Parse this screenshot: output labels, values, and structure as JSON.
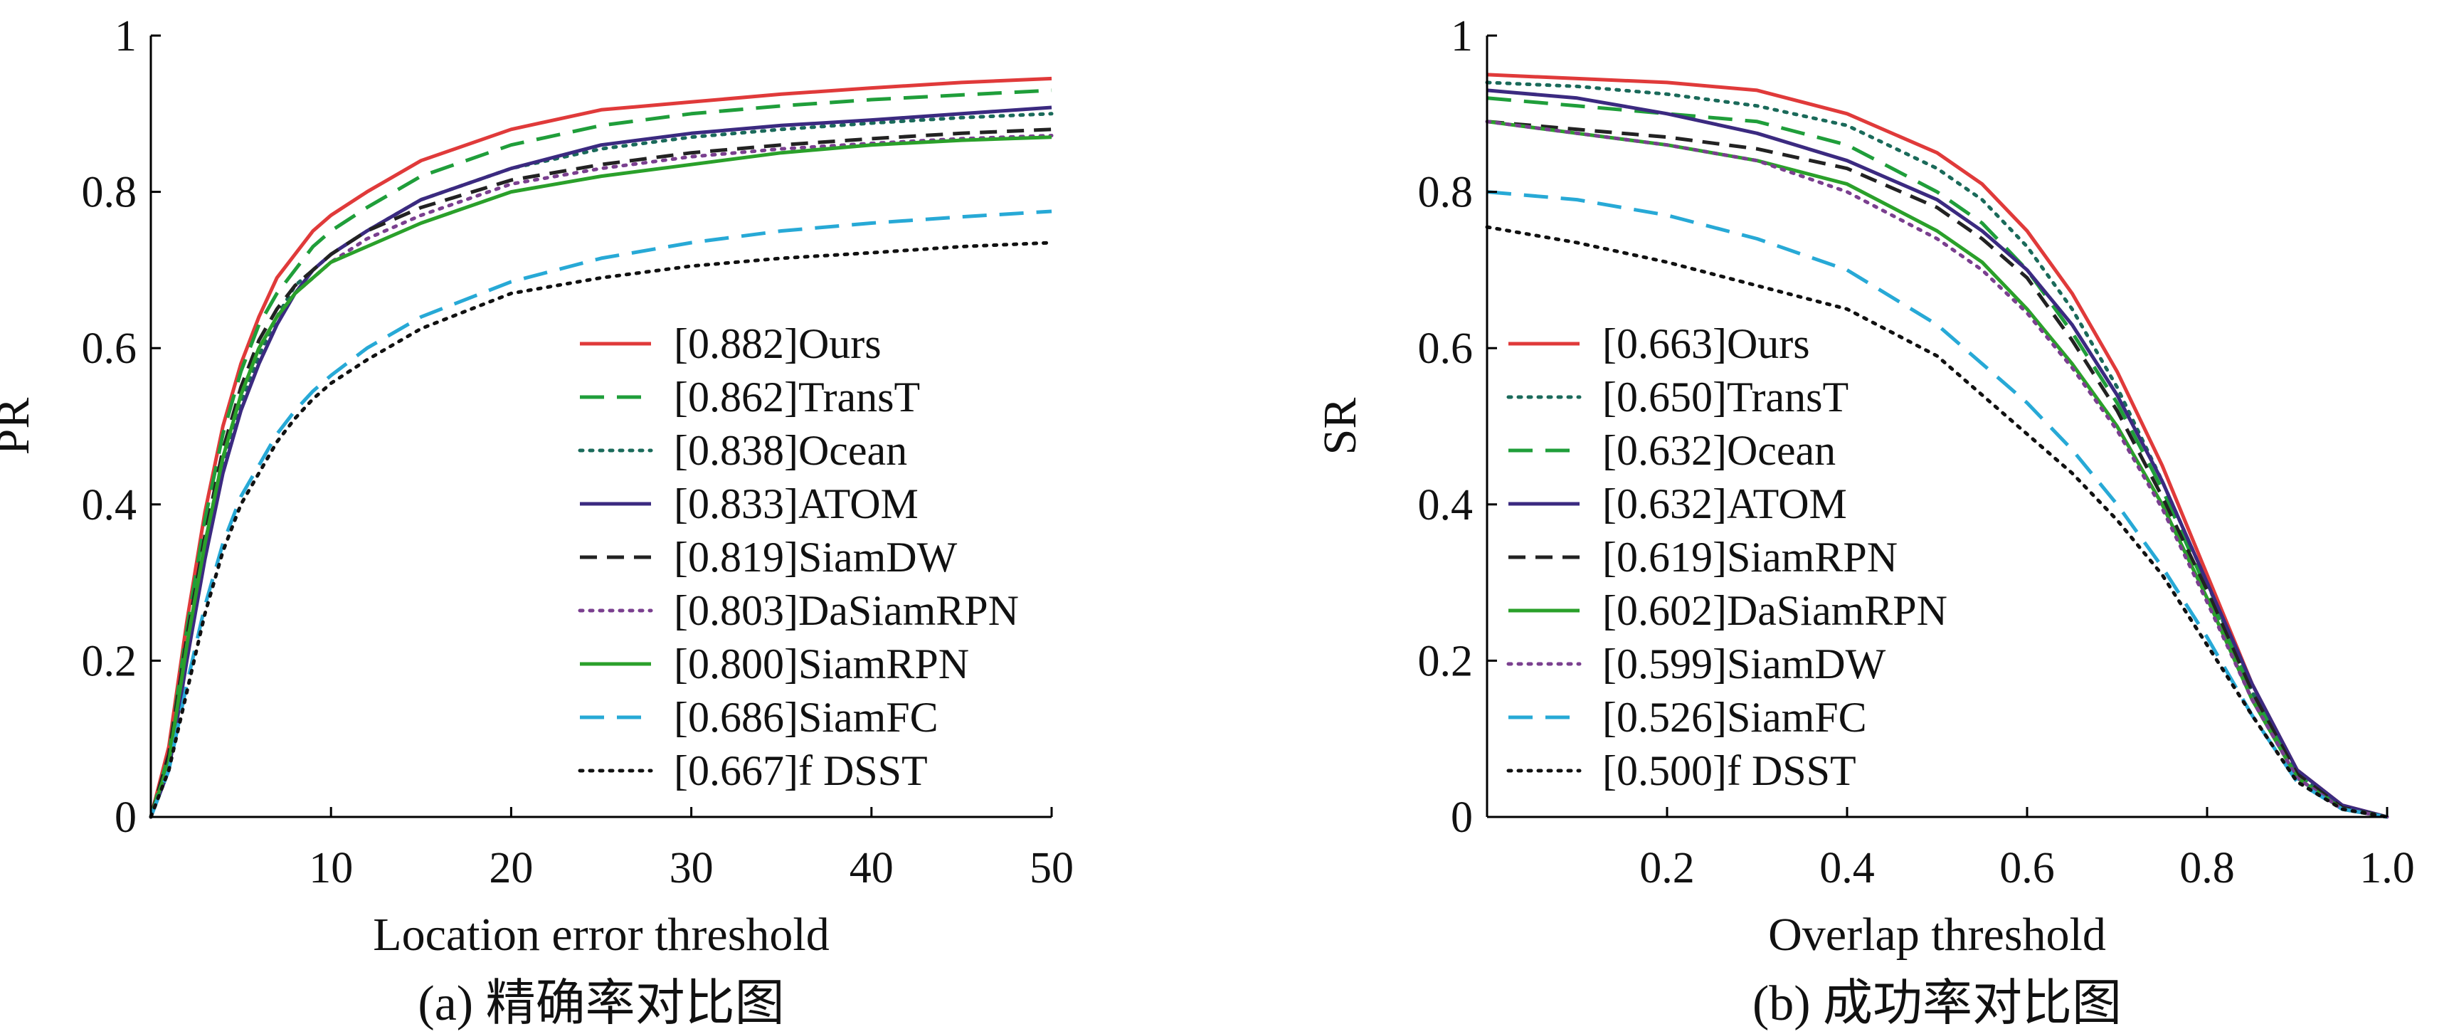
{
  "chart_data": [
    {
      "type": "line",
      "caption": "(a) 精确率对比图",
      "xlabel": "Location error threshold",
      "ylabel": "PR",
      "xlim": [
        0,
        50
      ],
      "ylim": [
        0,
        1
      ],
      "xticks": [
        {
          "v": 10,
          "label": "10"
        },
        {
          "v": 20,
          "label": "20"
        },
        {
          "v": 30,
          "label": "30"
        },
        {
          "v": 40,
          "label": "40"
        },
        {
          "v": 50,
          "label": "50"
        }
      ],
      "yticks": [
        {
          "v": 0,
          "label": "0"
        },
        {
          "v": 0.2,
          "label": "0.2"
        },
        {
          "v": 0.4,
          "label": "0.4"
        },
        {
          "v": 0.6,
          "label": "0.6"
        },
        {
          "v": 0.8,
          "label": "0.8"
        },
        {
          "v": 1,
          "label": "1"
        }
      ],
      "grid": false,
      "legend_position": "bottom-right",
      "x": [
        0,
        1,
        2,
        3,
        4,
        5,
        6,
        7,
        8,
        9,
        10,
        12,
        15,
        20,
        25,
        30,
        35,
        40,
        45,
        50
      ],
      "series": [
        {
          "name": "[0.882]Ours",
          "color": "#e03a3a",
          "dash": "solid",
          "values": [
            0.0,
            0.09,
            0.25,
            0.39,
            0.5,
            0.58,
            0.64,
            0.69,
            0.72,
            0.75,
            0.77,
            0.8,
            0.84,
            0.88,
            0.905,
            0.915,
            0.925,
            0.933,
            0.94,
            0.945
          ]
        },
        {
          "name": "[0.862]TransT",
          "color": "#1f9e3a",
          "dash": "long",
          "values": [
            0.0,
            0.08,
            0.24,
            0.38,
            0.49,
            0.57,
            0.63,
            0.67,
            0.7,
            0.73,
            0.75,
            0.78,
            0.82,
            0.86,
            0.885,
            0.9,
            0.91,
            0.918,
            0.924,
            0.93
          ]
        },
        {
          "name": "[0.838]Ocean",
          "color": "#1a6a5a",
          "dash": "dot",
          "values": [
            0.0,
            0.07,
            0.21,
            0.34,
            0.45,
            0.53,
            0.59,
            0.64,
            0.68,
            0.7,
            0.72,
            0.75,
            0.79,
            0.83,
            0.855,
            0.87,
            0.88,
            0.888,
            0.895,
            0.9
          ]
        },
        {
          "name": "[0.833]ATOM",
          "color": "#3b2a80",
          "dash": "solid",
          "values": [
            0.0,
            0.06,
            0.2,
            0.33,
            0.44,
            0.52,
            0.58,
            0.63,
            0.67,
            0.7,
            0.72,
            0.75,
            0.79,
            0.83,
            0.86,
            0.875,
            0.885,
            0.892,
            0.9,
            0.908
          ]
        },
        {
          "name": "[0.819]SiamDW",
          "color": "#222222",
          "dash": "dash",
          "values": [
            0.0,
            0.08,
            0.23,
            0.36,
            0.47,
            0.55,
            0.61,
            0.65,
            0.68,
            0.7,
            0.72,
            0.75,
            0.78,
            0.815,
            0.835,
            0.85,
            0.86,
            0.868,
            0.875,
            0.88
          ]
        },
        {
          "name": "[0.803]DaSiamRPN",
          "color": "#7a3f8f",
          "dash": "dot",
          "values": [
            0.0,
            0.07,
            0.22,
            0.35,
            0.46,
            0.54,
            0.6,
            0.64,
            0.67,
            0.69,
            0.71,
            0.74,
            0.77,
            0.81,
            0.83,
            0.845,
            0.855,
            0.862,
            0.868,
            0.872
          ]
        },
        {
          "name": "[0.800]SiamRPN",
          "color": "#2aa02a",
          "dash": "solid",
          "values": [
            0.0,
            0.07,
            0.22,
            0.35,
            0.46,
            0.54,
            0.6,
            0.64,
            0.67,
            0.69,
            0.71,
            0.73,
            0.76,
            0.8,
            0.82,
            0.835,
            0.85,
            0.86,
            0.866,
            0.87
          ]
        },
        {
          "name": "[0.686]SiamFC",
          "color": "#27a9d6",
          "dash": "long",
          "values": [
            0.0,
            0.06,
            0.17,
            0.27,
            0.35,
            0.41,
            0.45,
            0.49,
            0.52,
            0.545,
            0.565,
            0.6,
            0.64,
            0.685,
            0.715,
            0.735,
            0.75,
            0.76,
            0.768,
            0.775
          ]
        },
        {
          "name": "[0.667]f DSST",
          "color": "#111111",
          "dash": "dot",
          "values": [
            0.0,
            0.06,
            0.16,
            0.26,
            0.34,
            0.4,
            0.44,
            0.48,
            0.51,
            0.535,
            0.555,
            0.585,
            0.625,
            0.67,
            0.69,
            0.705,
            0.715,
            0.722,
            0.73,
            0.735
          ]
        }
      ]
    },
    {
      "type": "line",
      "caption": "(b) 成功率对比图",
      "xlabel": "Overlap threshold",
      "ylabel": "SR",
      "xlim": [
        0,
        1
      ],
      "ylim": [
        0,
        1
      ],
      "xticks": [
        {
          "v": 0.2,
          "label": "0.2"
        },
        {
          "v": 0.4,
          "label": "0.4"
        },
        {
          "v": 0.6,
          "label": "0.6"
        },
        {
          "v": 0.8,
          "label": "0.8"
        },
        {
          "v": 1,
          "label": "1.0"
        }
      ],
      "yticks": [
        {
          "v": 0,
          "label": "0"
        },
        {
          "v": 0.2,
          "label": "0.2"
        },
        {
          "v": 0.4,
          "label": "0.4"
        },
        {
          "v": 0.6,
          "label": "0.6"
        },
        {
          "v": 0.8,
          "label": "0.8"
        },
        {
          "v": 1,
          "label": "1"
        }
      ],
      "grid": false,
      "legend_position": "left-center",
      "x": [
        0,
        0.1,
        0.2,
        0.3,
        0.4,
        0.5,
        0.55,
        0.6,
        0.65,
        0.7,
        0.75,
        0.8,
        0.85,
        0.9,
        0.95,
        1.0
      ],
      "series": [
        {
          "name": "[0.663]Ours",
          "color": "#e03a3a",
          "dash": "solid",
          "values": [
            0.95,
            0.945,
            0.94,
            0.93,
            0.9,
            0.85,
            0.81,
            0.75,
            0.67,
            0.57,
            0.45,
            0.31,
            0.17,
            0.06,
            0.015,
            0.0
          ]
        },
        {
          "name": "[0.650]TransT",
          "color": "#1a6a5a",
          "dash": "dot",
          "values": [
            0.94,
            0.935,
            0.925,
            0.91,
            0.885,
            0.83,
            0.79,
            0.73,
            0.65,
            0.55,
            0.43,
            0.3,
            0.16,
            0.055,
            0.012,
            0.0
          ]
        },
        {
          "name": "[0.632]Ocean",
          "color": "#1f9e3a",
          "dash": "long",
          "values": [
            0.92,
            0.91,
            0.9,
            0.89,
            0.86,
            0.8,
            0.76,
            0.7,
            0.62,
            0.53,
            0.42,
            0.29,
            0.16,
            0.055,
            0.012,
            0.0
          ]
        },
        {
          "name": "[0.632]ATOM",
          "color": "#3b2a80",
          "dash": "solid",
          "values": [
            0.93,
            0.92,
            0.9,
            0.875,
            0.84,
            0.79,
            0.75,
            0.7,
            0.63,
            0.54,
            0.43,
            0.3,
            0.17,
            0.06,
            0.015,
            0.0
          ]
        },
        {
          "name": "[0.619]SiamRPN",
          "color": "#222222",
          "dash": "dash",
          "values": [
            0.89,
            0.88,
            0.87,
            0.855,
            0.83,
            0.78,
            0.74,
            0.69,
            0.61,
            0.52,
            0.41,
            0.29,
            0.16,
            0.055,
            0.012,
            0.0
          ]
        },
        {
          "name": "[0.602]DaSiamRPN",
          "color": "#2aa02a",
          "dash": "solid",
          "values": [
            0.89,
            0.875,
            0.86,
            0.84,
            0.81,
            0.75,
            0.71,
            0.65,
            0.58,
            0.5,
            0.4,
            0.28,
            0.15,
            0.05,
            0.01,
            0.0
          ]
        },
        {
          "name": "[0.599]SiamDW",
          "color": "#7a3f8f",
          "dash": "dot",
          "values": [
            0.89,
            0.875,
            0.86,
            0.84,
            0.8,
            0.74,
            0.7,
            0.645,
            0.575,
            0.495,
            0.395,
            0.275,
            0.15,
            0.05,
            0.01,
            0.0
          ]
        },
        {
          "name": "[0.526]SiamFC",
          "color": "#27a9d6",
          "dash": "long",
          "values": [
            0.8,
            0.79,
            0.77,
            0.74,
            0.7,
            0.63,
            0.58,
            0.53,
            0.47,
            0.4,
            0.32,
            0.23,
            0.13,
            0.045,
            0.01,
            0.0
          ]
        },
        {
          "name": "[0.500]f DSST",
          "color": "#111111",
          "dash": "dot",
          "values": [
            0.755,
            0.735,
            0.71,
            0.68,
            0.65,
            0.59,
            0.54,
            0.49,
            0.44,
            0.38,
            0.31,
            0.22,
            0.13,
            0.045,
            0.01,
            0.0
          ]
        }
      ]
    }
  ]
}
